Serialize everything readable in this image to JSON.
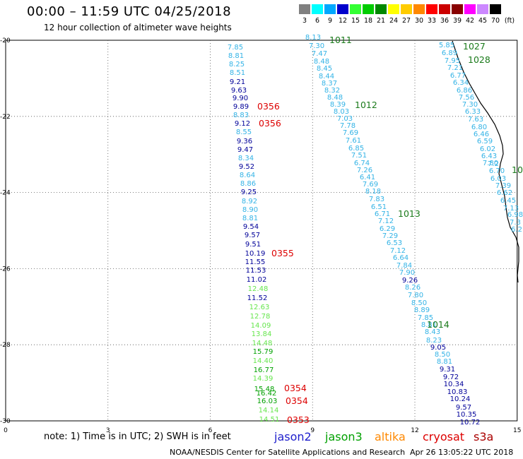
{
  "header": {
    "title": "00:00 – 11:59 UTC 04/25/2018",
    "subtitle": "12 hour collection of altimeter wave heights"
  },
  "legend": {
    "unit": "(ft)",
    "bins": [
      {
        "label": "3",
        "color": "#808080"
      },
      {
        "label": "6",
        "color": "#00ffff"
      },
      {
        "label": "9",
        "color": "#00a8ff"
      },
      {
        "label": "12",
        "color": "#0000cc"
      },
      {
        "label": "15",
        "color": "#33ff33"
      },
      {
        "label": "18",
        "color": "#00cc00"
      },
      {
        "label": "21",
        "color": "#008800"
      },
      {
        "label": "24",
        "color": "#ffff00"
      },
      {
        "label": "27",
        "color": "#ffcc00"
      },
      {
        "label": "30",
        "color": "#ff8800"
      },
      {
        "label": "33",
        "color": "#ff0000"
      },
      {
        "label": "36",
        "color": "#cc0000"
      },
      {
        "label": "39",
        "color": "#880000"
      },
      {
        "label": "42",
        "color": "#ff00ff"
      },
      {
        "label": "45",
        "color": "#cc88ff"
      },
      {
        "label": "70",
        "color": "#000000"
      }
    ]
  },
  "axes": {
    "x_ticks": [
      "0",
      "3",
      "6",
      "9",
      "12",
      "15"
    ],
    "y_ticks": [
      "-20",
      "-22",
      "-24",
      "-26",
      "-28",
      "-30"
    ]
  },
  "colors": {
    "light": "#33b3e6",
    "dark": "#000099",
    "green_light": "#66e64d",
    "green": "#00a000",
    "pressure": "#1a7a1a",
    "time": "#dd0000",
    "coast": "#000000"
  },
  "track1": {
    "values": [
      {
        "v": "7.85",
        "c": "light"
      },
      {
        "v": "8.81",
        "c": "light"
      },
      {
        "v": "8.25",
        "c": "light"
      },
      {
        "v": "8.51",
        "c": "light"
      },
      {
        "v": "9.21",
        "c": "dark"
      },
      {
        "v": "9.63",
        "c": "dark"
      },
      {
        "v": "9.90",
        "c": "dark"
      },
      {
        "v": "9.89",
        "c": "dark"
      },
      {
        "v": "8.83",
        "c": "light"
      },
      {
        "v": "9.12",
        "c": "dark"
      },
      {
        "v": "8.55",
        "c": "light"
      },
      {
        "v": "9.36",
        "c": "dark"
      },
      {
        "v": "9.47",
        "c": "dark"
      },
      {
        "v": "8.34",
        "c": "light"
      },
      {
        "v": "9.52",
        "c": "dark"
      },
      {
        "v": "8.64",
        "c": "light"
      },
      {
        "v": "8.86",
        "c": "light"
      },
      {
        "v": "9.25",
        "c": "dark"
      },
      {
        "v": "8.92",
        "c": "light"
      },
      {
        "v": "8.90",
        "c": "light"
      },
      {
        "v": "8.81",
        "c": "light"
      },
      {
        "v": "9.54",
        "c": "dark"
      },
      {
        "v": "9.57",
        "c": "dark"
      },
      {
        "v": "9.51",
        "c": "dark"
      },
      {
        "v": "10.19",
        "c": "dark"
      },
      {
        "v": "11.55",
        "c": "dark"
      },
      {
        "v": "11.53",
        "c": "dark"
      },
      {
        "v": "11.02",
        "c": "dark"
      },
      {
        "v": "12.48",
        "c": "green_light"
      },
      {
        "v": "11.52",
        "c": "dark"
      },
      {
        "v": "12.63",
        "c": "green_light"
      },
      {
        "v": "12.78",
        "c": "green_light"
      },
      {
        "v": "14.09",
        "c": "green_light"
      },
      {
        "v": "13.84",
        "c": "green_light"
      },
      {
        "v": "14.48",
        "c": "green_light"
      },
      {
        "v": "15.79",
        "c": "green"
      },
      {
        "v": "14.40",
        "c": "green_light"
      },
      {
        "v": "16.77",
        "c": "green"
      },
      {
        "v": "14.39",
        "c": "green_light"
      },
      {
        "v": "15.48",
        "c": "green"
      },
      {
        "v": "16.42",
        "c": "green"
      },
      {
        "v": "16.03",
        "c": "green"
      },
      {
        "v": "14.14",
        "c": "green_light"
      },
      {
        "v": "14.51",
        "c": "green_light"
      }
    ],
    "times": [
      {
        "t": "0356"
      },
      {
        "t": "0356"
      },
      {
        "t": "0355"
      },
      {
        "t": "0354"
      },
      {
        "t": "0354"
      },
      {
        "t": "0353"
      }
    ]
  },
  "track2": {
    "values": [
      {
        "v": "8.13",
        "c": "light"
      },
      {
        "v": "7.30",
        "c": "light"
      },
      {
        "v": "7.47",
        "c": "light"
      },
      {
        "v": "8.48",
        "c": "light"
      },
      {
        "v": "8.45",
        "c": "light"
      },
      {
        "v": "8.44",
        "c": "light"
      },
      {
        "v": "8.37",
        "c": "light"
      },
      {
        "v": "8.32",
        "c": "light"
      },
      {
        "v": "8.48",
        "c": "light"
      },
      {
        "v": "8.39",
        "c": "light"
      },
      {
        "v": "8.03",
        "c": "light"
      },
      {
        "v": "7.03",
        "c": "light"
      },
      {
        "v": "7.78",
        "c": "light"
      },
      {
        "v": "7.69",
        "c": "light"
      },
      {
        "v": "7.61",
        "c": "light"
      },
      {
        "v": "6.85",
        "c": "light"
      },
      {
        "v": "7.51",
        "c": "light"
      },
      {
        "v": "6.74",
        "c": "light"
      },
      {
        "v": "7.26",
        "c": "light"
      },
      {
        "v": "6.41",
        "c": "light"
      },
      {
        "v": "7.69",
        "c": "light"
      },
      {
        "v": "8.18",
        "c": "light"
      },
      {
        "v": "7.83",
        "c": "light"
      },
      {
        "v": "6.51",
        "c": "light"
      },
      {
        "v": "6.71",
        "c": "light"
      },
      {
        "v": "7.12",
        "c": "light"
      },
      {
        "v": "6.29",
        "c": "light"
      },
      {
        "v": "7.29",
        "c": "light"
      },
      {
        "v": "6.53",
        "c": "light"
      },
      {
        "v": "7.12",
        "c": "light"
      },
      {
        "v": "6.64",
        "c": "light"
      },
      {
        "v": "7.84",
        "c": "light"
      },
      {
        "v": "7.90",
        "c": "light"
      },
      {
        "v": "9.26",
        "c": "dark"
      },
      {
        "v": "8.26",
        "c": "light"
      },
      {
        "v": "7.80",
        "c": "light"
      },
      {
        "v": "8.50",
        "c": "light"
      },
      {
        "v": "8.89",
        "c": "light"
      },
      {
        "v": "7.85",
        "c": "light"
      },
      {
        "v": "8.81",
        "c": "light"
      },
      {
        "v": "8.43",
        "c": "light"
      },
      {
        "v": "8.23",
        "c": "light"
      },
      {
        "v": "9.05",
        "c": "dark"
      },
      {
        "v": "8.50",
        "c": "light"
      },
      {
        "v": "8.81",
        "c": "light"
      },
      {
        "v": "9.31",
        "c": "dark"
      },
      {
        "v": "9.72",
        "c": "dark"
      },
      {
        "v": "10.34",
        "c": "dark"
      },
      {
        "v": "10.83",
        "c": "dark"
      },
      {
        "v": "10.24",
        "c": "dark"
      },
      {
        "v": "9.57",
        "c": "dark"
      },
      {
        "v": "10.35",
        "c": "dark"
      },
      {
        "v": "10.72",
        "c": "dark"
      }
    ],
    "pressure": [
      "1011",
      "1012",
      "1013",
      "1014"
    ]
  },
  "track3": {
    "values": [
      {
        "v": "5.85",
        "c": "light"
      },
      {
        "v": "6.89",
        "c": "light"
      },
      {
        "v": "7.95",
        "c": "light"
      },
      {
        "v": "7.21",
        "c": "light"
      },
      {
        "v": "6.77",
        "c": "light"
      },
      {
        "v": "6.34",
        "c": "light"
      },
      {
        "v": "6.86",
        "c": "light"
      },
      {
        "v": "7.56",
        "c": "light"
      },
      {
        "v": "7.30",
        "c": "light"
      },
      {
        "v": "6.33",
        "c": "light"
      },
      {
        "v": "7.63",
        "c": "light"
      },
      {
        "v": "6.80",
        "c": "light"
      },
      {
        "v": "6.46",
        "c": "light"
      },
      {
        "v": "6.59",
        "c": "light"
      },
      {
        "v": "6.02",
        "c": "light"
      },
      {
        "v": "6.43",
        "c": "light"
      },
      {
        "v": "7.80",
        "c": "light"
      },
      {
        "v": "7.2",
        "c": "light"
      },
      {
        "v": "6.70",
        "c": "light"
      },
      {
        "v": "6.03",
        "c": "light"
      },
      {
        "v": "7.39",
        "c": "light"
      },
      {
        "v": "6.62",
        "c": "light"
      },
      {
        "v": "6.45",
        "c": "light"
      },
      {
        "v": "7.13",
        "c": "light"
      },
      {
        "v": "6.98",
        "c": "light"
      },
      {
        "v": "7.3",
        "c": "light"
      },
      {
        "v": "6.2",
        "c": "light"
      }
    ],
    "pressure": [
      "1027",
      "1028",
      "10"
    ]
  },
  "footer": {
    "note": "note: 1) Time is in UTC; 2) SWH is in feet",
    "satellites": [
      {
        "name": "jason2",
        "color": "#1e1ecc"
      },
      {
        "name": "jason3",
        "color": "#00a000"
      },
      {
        "name": "altika",
        "color": "#ff8800"
      },
      {
        "name": "cryosat",
        "color": "#dd0000"
      },
      {
        "name": "s3a",
        "color": "#aa0000"
      }
    ],
    "credit": "NOAA/NESDIS Center for Satellite Applications and Research",
    "timestamp": "Apr 26 13:05:22 UTC 2018"
  }
}
